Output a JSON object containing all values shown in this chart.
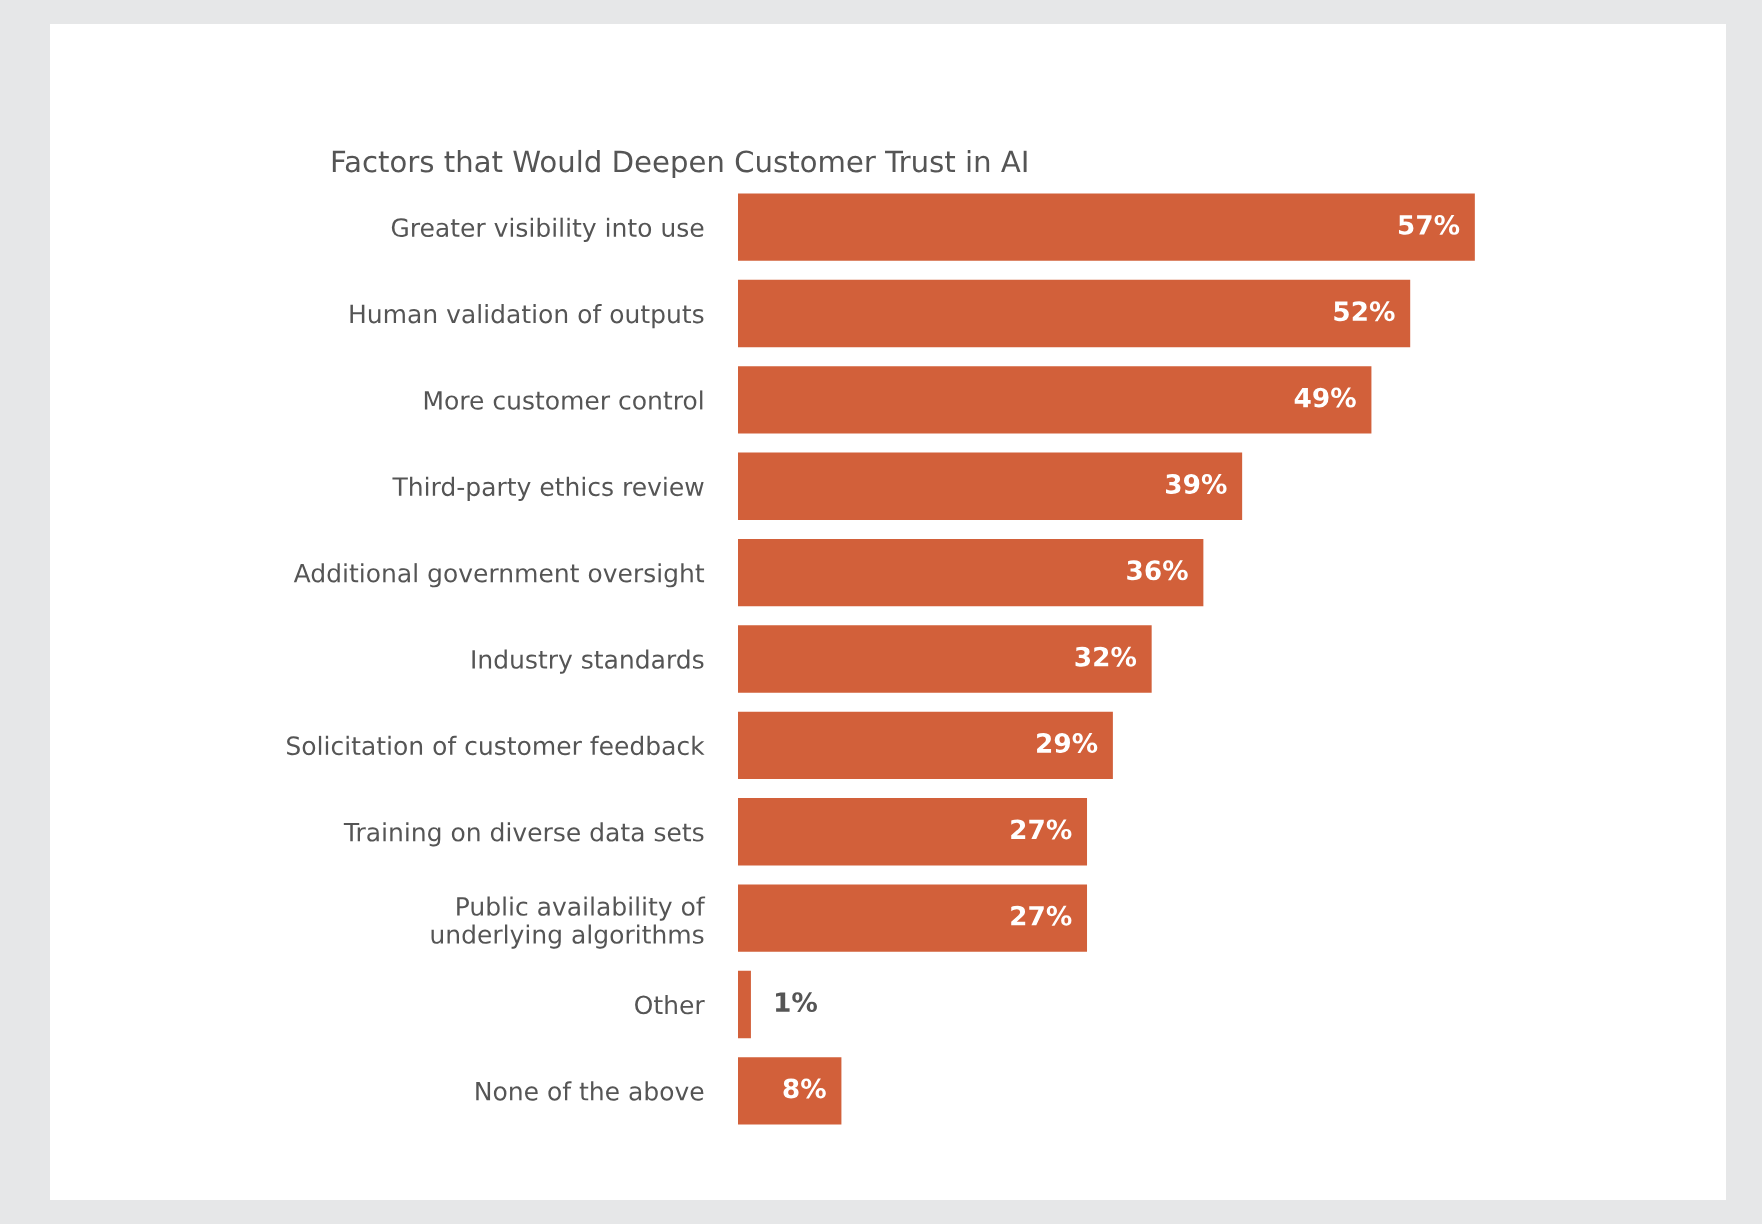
{
  "chart_data": {
    "type": "bar",
    "orientation": "horizontal",
    "title": "Factors that Would Deepen Customer Trust in AI",
    "categories": [
      "Greater visibility into use",
      "Human validation of outputs",
      "More customer control",
      "Third-party ethics review",
      "Additional government oversight",
      "Industry standards",
      "Solicitation of customer feedback",
      "Training on diverse data sets",
      "Public availability of\nunderlying algorithms",
      "Other",
      "None of the above"
    ],
    "values": [
      57,
      52,
      49,
      39,
      36,
      32,
      29,
      27,
      27,
      1,
      8
    ],
    "value_labels": [
      "57%",
      "52%",
      "49%",
      "39%",
      "36%",
      "32%",
      "29%",
      "27%",
      "27%",
      "1%",
      "8%"
    ],
    "color": "#d2603a",
    "grid": false,
    "legend": false
  }
}
